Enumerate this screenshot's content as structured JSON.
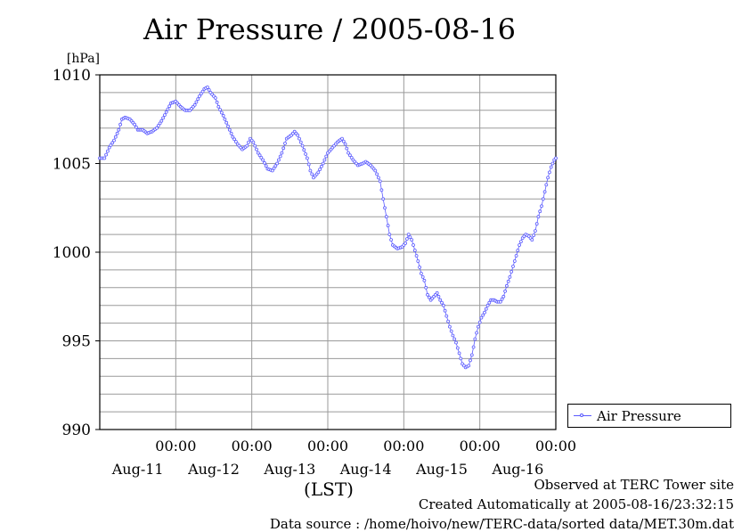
{
  "chart_data": {
    "type": "line",
    "title": "Air Pressure / 2005-08-16",
    "ylabel": "[hPa]",
    "xlabel": "(LST)",
    "ylim": [
      990,
      1010
    ],
    "yticks": [
      990,
      995,
      1000,
      1005,
      1010
    ],
    "xlim_hours": [
      0,
      144
    ],
    "grid": true,
    "legend_placement": "right",
    "time_ticks": [
      {
        "time_label": "00:00",
        "date_label": "Aug-11"
      },
      {
        "time_label": "00:00",
        "date_label": "Aug-12"
      },
      {
        "time_label": "00:00",
        "date_label": "Aug-13"
      },
      {
        "time_label": "00:00",
        "date_label": "Aug-14"
      },
      {
        "time_label": "00:00",
        "date_label": "Aug-15"
      },
      {
        "time_label": "00:00",
        "date_label": "Aug-16"
      }
    ],
    "series": [
      {
        "name": "Air Pressure",
        "color": "#5a5aff",
        "points": [
          [
            0.0,
            1005.3
          ],
          [
            1.5,
            1005.3
          ],
          [
            3.0,
            1005.9
          ],
          [
            4.5,
            1006.3
          ],
          [
            6.0,
            1006.9
          ],
          [
            7.0,
            1007.5
          ],
          [
            8.0,
            1007.6
          ],
          [
            9.5,
            1007.5
          ],
          [
            11.0,
            1007.2
          ],
          [
            12.0,
            1006.9
          ],
          [
            13.5,
            1006.9
          ],
          [
            15.0,
            1006.7
          ],
          [
            16.5,
            1006.8
          ],
          [
            18.0,
            1007.0
          ],
          [
            19.5,
            1007.4
          ],
          [
            21.0,
            1007.9
          ],
          [
            22.5,
            1008.4
          ],
          [
            24.0,
            1008.5
          ],
          [
            25.5,
            1008.2
          ],
          [
            27.0,
            1008.0
          ],
          [
            28.5,
            1008.0
          ],
          [
            30.0,
            1008.3
          ],
          [
            31.5,
            1008.8
          ],
          [
            33.0,
            1009.2
          ],
          [
            34.0,
            1009.3
          ],
          [
            35.0,
            1009.0
          ],
          [
            36.5,
            1008.7
          ],
          [
            37.5,
            1008.2
          ],
          [
            39.0,
            1007.7
          ],
          [
            40.5,
            1007.1
          ],
          [
            42.0,
            1006.5
          ],
          [
            43.5,
            1006.1
          ],
          [
            45.0,
            1005.8
          ],
          [
            46.5,
            1006.0
          ],
          [
            47.5,
            1006.4
          ],
          [
            48.5,
            1006.2
          ],
          [
            50.0,
            1005.6
          ],
          [
            51.5,
            1005.2
          ],
          [
            53.0,
            1004.7
          ],
          [
            54.5,
            1004.6
          ],
          [
            56.0,
            1005.0
          ],
          [
            57.5,
            1005.6
          ],
          [
            59.0,
            1006.4
          ],
          [
            60.5,
            1006.6
          ],
          [
            61.5,
            1006.8
          ],
          [
            62.5,
            1006.6
          ],
          [
            64.0,
            1006.0
          ],
          [
            65.5,
            1005.3
          ],
          [
            66.5,
            1004.6
          ],
          [
            67.5,
            1004.2
          ],
          [
            69.0,
            1004.5
          ],
          [
            70.5,
            1005.0
          ],
          [
            72.0,
            1005.6
          ],
          [
            73.5,
            1005.9
          ],
          [
            75.0,
            1006.2
          ],
          [
            76.5,
            1006.4
          ],
          [
            77.5,
            1006.1
          ],
          [
            78.5,
            1005.6
          ],
          [
            80.0,
            1005.2
          ],
          [
            81.5,
            1004.9
          ],
          [
            83.0,
            1005.0
          ],
          [
            84.0,
            1005.1
          ],
          [
            85.5,
            1004.9
          ],
          [
            87.0,
            1004.6
          ],
          [
            88.5,
            1004.0
          ],
          [
            89.5,
            1003.0
          ],
          [
            90.5,
            1002.0
          ],
          [
            91.5,
            1001.0
          ],
          [
            92.5,
            1000.4
          ],
          [
            94.0,
            1000.2
          ],
          [
            95.5,
            1000.3
          ],
          [
            96.5,
            1000.5
          ],
          [
            97.5,
            1001.0
          ],
          [
            98.5,
            1000.7
          ],
          [
            99.5,
            1000.1
          ],
          [
            100.5,
            999.5
          ],
          [
            101.5,
            998.8
          ],
          [
            102.5,
            998.4
          ],
          [
            103.5,
            997.6
          ],
          [
            104.5,
            997.3
          ],
          [
            105.5,
            997.5
          ],
          [
            106.5,
            997.7
          ],
          [
            107.5,
            997.3
          ],
          [
            108.5,
            997.0
          ],
          [
            109.5,
            996.4
          ],
          [
            110.5,
            995.8
          ],
          [
            111.5,
            995.3
          ],
          [
            112.5,
            994.9
          ],
          [
            113.5,
            994.3
          ],
          [
            114.5,
            993.7
          ],
          [
            115.5,
            993.5
          ],
          [
            116.5,
            993.6
          ],
          [
            117.5,
            994.2
          ],
          [
            118.5,
            995.1
          ],
          [
            119.5,
            995.8
          ],
          [
            120.5,
            996.3
          ],
          [
            121.5,
            996.6
          ],
          [
            122.5,
            997.0
          ],
          [
            123.5,
            997.3
          ],
          [
            124.5,
            997.3
          ],
          [
            125.5,
            997.2
          ],
          [
            126.5,
            997.2
          ],
          [
            127.5,
            997.5
          ],
          [
            128.5,
            998.1
          ],
          [
            129.5,
            998.6
          ],
          [
            130.5,
            999.2
          ],
          [
            131.5,
            999.8
          ],
          [
            132.5,
            1000.4
          ],
          [
            133.5,
            1000.8
          ],
          [
            134.5,
            1001.0
          ],
          [
            135.5,
            1000.9
          ],
          [
            136.5,
            1000.7
          ],
          [
            137.5,
            1001.2
          ],
          [
            138.5,
            1002.0
          ],
          [
            139.5,
            1002.6
          ],
          [
            140.5,
            1003.4
          ],
          [
            141.5,
            1004.2
          ],
          [
            142.5,
            1004.8
          ],
          [
            143.5,
            1005.2
          ],
          [
            144.0,
            1005.3
          ]
        ]
      }
    ]
  },
  "legend": {
    "label": "Air Pressure"
  },
  "footer": {
    "line1": "Observed at TERC Tower site",
    "line2": "Created Automatically at 2005-08-16/23:32:15",
    "line3": "Data source : /home/hoivo/new/TERC-data/sorted  data/MET.30m.dat"
  }
}
